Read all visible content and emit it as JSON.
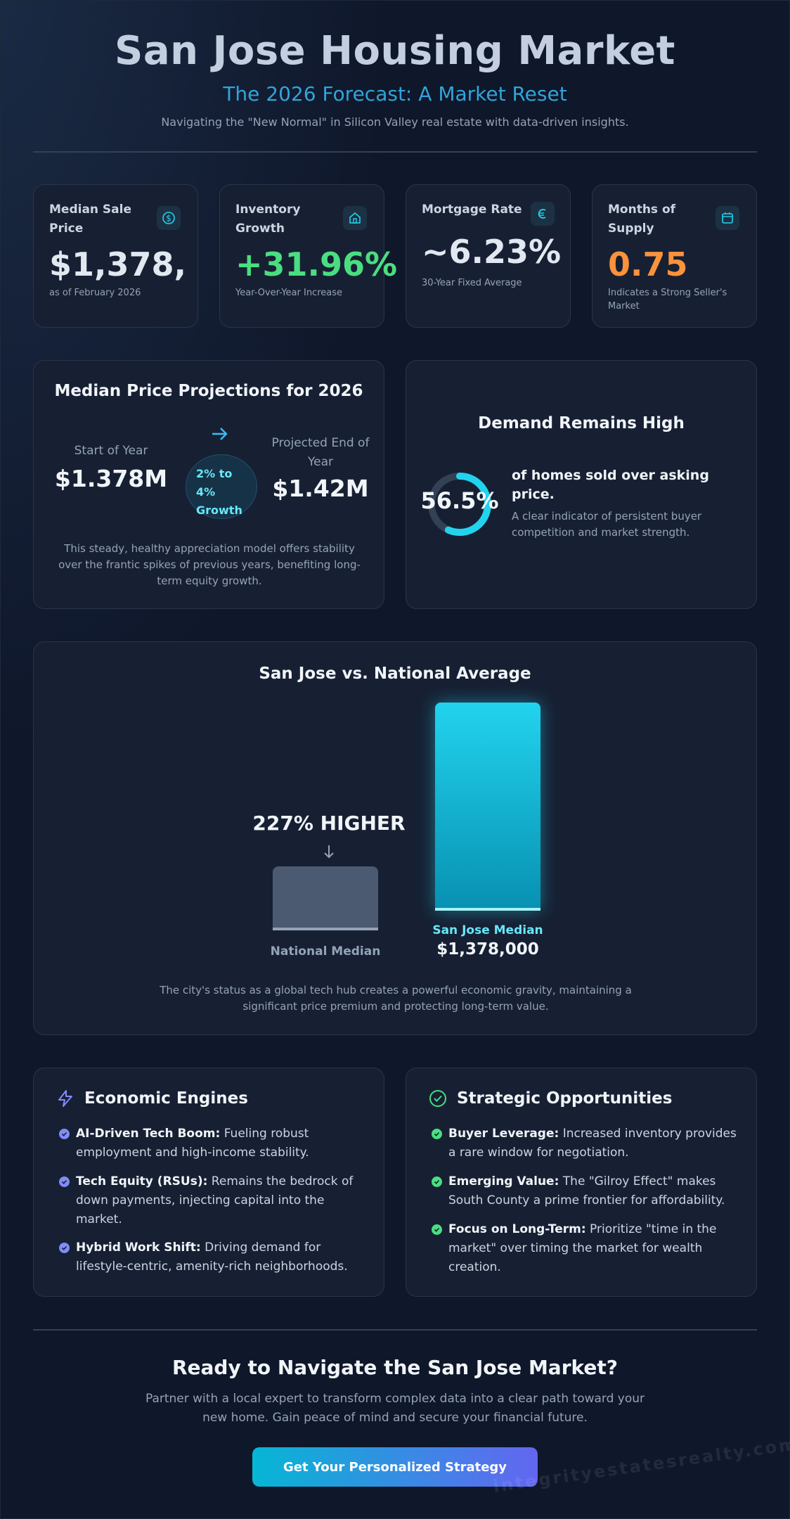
{
  "header": {
    "title": "San Jose Housing Market",
    "subtitle": "The 2026 Forecast: A Market Reset",
    "tagline": "Navigating the \"New Normal\" in Silicon Valley real estate with data-driven insights."
  },
  "stats": [
    {
      "label": "Median Sale Price",
      "value": "$1,378,",
      "note": "as of February 2026",
      "icon": "dollar-icon",
      "color": "#e2e8f0"
    },
    {
      "label": "Inventory Growth",
      "value": "+31.96%",
      "note": "Year-Over-Year Increase",
      "icon": "home-icon",
      "color": "#4ade80"
    },
    {
      "label": "Mortgage Rate",
      "value": "~6.23%",
      "note": "30-Year Fixed Average",
      "icon": "percent-icon",
      "color": "#e2e8f0"
    },
    {
      "label": "Months of Supply",
      "value": "0.75",
      "note": "Indicates a Strong Seller's Market",
      "icon": "calendar-icon",
      "color": "#fb923c"
    }
  ],
  "projection": {
    "title": "Median Price Projections for 2026",
    "start_label": "Start of Year",
    "start_value": "$1.378M",
    "growth": "2% to 4% Growth",
    "end_label": "Projected End of Year",
    "end_value": "$1.42M",
    "description": "This steady, healthy appreciation model offers stability over the frantic spikes of previous years, benefiting long-term equity growth."
  },
  "demand": {
    "title": "Demand Remains High",
    "percent": "56.5%",
    "percent_value": 56.5,
    "headline": "of homes sold over asking price.",
    "description": "A clear indicator of persistent buyer competition and market strength."
  },
  "comparison": {
    "title": "San Jose vs. National Average",
    "callout": "227% HIGHER",
    "national_label": "National Median",
    "sj_label": "San Jose Median",
    "sj_value": "$1,378,000",
    "ratio": 3.27,
    "description": "The city's status as a global tech hub creates a powerful economic gravity, maintaining a significant price premium and protecting long-term value."
  },
  "engines": {
    "title": "Economic Engines",
    "items": [
      {
        "bold": "AI-Driven Tech Boom:",
        "text": " Fueling robust employment and high-income stability."
      },
      {
        "bold": "Tech Equity (RSUs):",
        "text": " Remains the bedrock of down payments, injecting capital into the market."
      },
      {
        "bold": "Hybrid Work Shift:",
        "text": " Driving demand for lifestyle-centric, amenity-rich neighborhoods."
      }
    ]
  },
  "opportunities": {
    "title": "Strategic Opportunities",
    "items": [
      {
        "bold": "Buyer Leverage:",
        "text": " Increased inventory provides a rare window for negotiation."
      },
      {
        "bold": "Emerging Value:",
        "text": " The \"Gilroy Effect\" makes South County a prime frontier for affordability."
      },
      {
        "bold": "Focus on Long-Term:",
        "text": " Prioritize \"time in the market\" over timing the market for wealth creation."
      }
    ]
  },
  "cta": {
    "title": "Ready to Navigate the San Jose Market?",
    "description": "Partner with a local expert to transform complex data into a clear path toward your new home. Gain peace of mind and secure your financial future.",
    "button": "Get Your Personalized Strategy"
  },
  "watermark": "integrityestatesrealty.com"
}
